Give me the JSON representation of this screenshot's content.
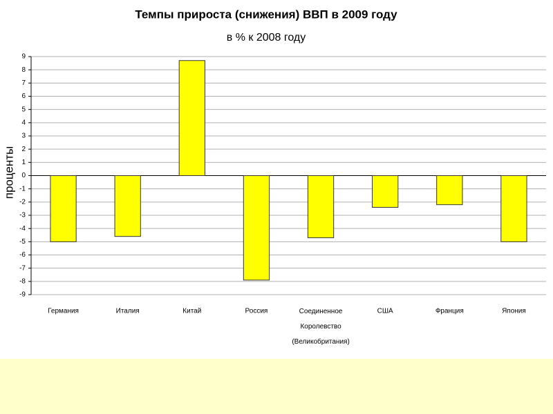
{
  "chart_data": {
    "type": "bar",
    "title": "Темпы прироста (снижения) ВВП в 2009 году",
    "subtitle": "в % к  2008 году",
    "y_label": "проценты",
    "categories": [
      "Германия",
      "Италия",
      "Китай",
      "Россия",
      "Соединенное Королевство (Великобритания)",
      "США",
      "Франция",
      "Япония"
    ],
    "values": [
      -5.0,
      -4.6,
      8.7,
      -7.9,
      -4.7,
      -2.4,
      -2.2,
      -5.0
    ],
    "color": "#ffff00",
    "ylim": [
      -9,
      9
    ],
    "yticks": [
      -9,
      -8,
      -7,
      -6,
      -5,
      -4,
      -3,
      -2,
      -1,
      0,
      1,
      2,
      3,
      4,
      5,
      6,
      7,
      8,
      9
    ],
    "grid": true
  }
}
